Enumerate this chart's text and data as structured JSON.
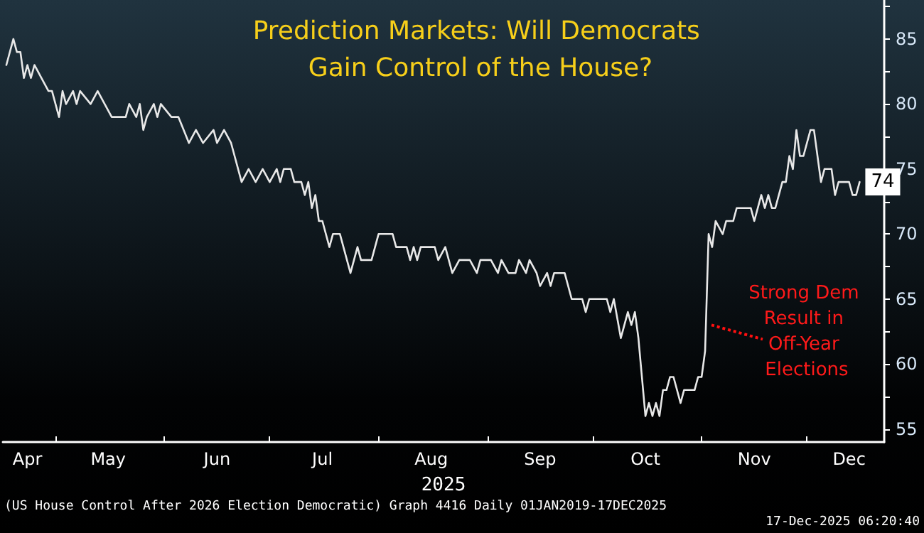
{
  "chart_data": {
    "type": "line",
    "title": "Prediction Markets: Will Democrats Gain Control of the House?",
    "xlabel": "2025",
    "x": [
      "2025-04-17",
      "2025-04-19",
      "2025-04-20",
      "2025-04-21",
      "2025-04-22",
      "2025-04-23",
      "2025-04-24",
      "2025-04-25",
      "2025-04-27",
      "2025-04-29",
      "2025-04-30",
      "2025-05-02",
      "2025-05-03",
      "2025-05-04",
      "2025-05-06",
      "2025-05-07",
      "2025-05-08",
      "2025-05-11",
      "2025-05-13",
      "2025-05-15",
      "2025-05-17",
      "2025-05-21",
      "2025-05-22",
      "2025-05-24",
      "2025-05-25",
      "2025-05-26",
      "2025-05-27",
      "2025-05-29",
      "2025-05-30",
      "2025-05-31",
      "2025-06-03",
      "2025-06-05",
      "2025-06-08",
      "2025-06-10",
      "2025-06-12",
      "2025-06-15",
      "2025-06-16",
      "2025-06-18",
      "2025-06-20",
      "2025-06-23",
      "2025-06-25",
      "2025-06-27",
      "2025-06-29",
      "2025-07-01",
      "2025-07-03",
      "2025-07-04",
      "2025-07-05",
      "2025-07-07",
      "2025-07-08",
      "2025-07-10",
      "2025-07-11",
      "2025-07-12",
      "2025-07-13",
      "2025-07-14",
      "2025-07-15",
      "2025-07-16",
      "2025-07-18",
      "2025-07-19",
      "2025-07-21",
      "2025-07-23",
      "2025-07-24",
      "2025-07-26",
      "2025-07-27",
      "2025-07-30",
      "2025-08-01",
      "2025-08-05",
      "2025-08-06",
      "2025-08-09",
      "2025-08-10",
      "2025-08-11",
      "2025-08-12",
      "2025-08-13",
      "2025-08-17",
      "2025-08-18",
      "2025-08-20",
      "2025-08-22",
      "2025-08-24",
      "2025-08-27",
      "2025-08-29",
      "2025-08-30",
      "2025-09-02",
      "2025-09-04",
      "2025-09-05",
      "2025-09-07",
      "2025-09-09",
      "2025-09-10",
      "2025-09-12",
      "2025-09-13",
      "2025-09-15",
      "2025-09-16",
      "2025-09-18",
      "2025-09-19",
      "2025-09-20",
      "2025-09-23",
      "2025-09-25",
      "2025-09-28",
      "2025-09-29",
      "2025-09-30",
      "2025-10-05",
      "2025-10-06",
      "2025-10-07",
      "2025-10-09",
      "2025-10-11",
      "2025-10-12",
      "2025-10-13",
      "2025-10-14",
      "2025-10-16",
      "2025-10-17",
      "2025-10-18",
      "2025-10-19",
      "2025-10-20",
      "2025-10-21",
      "2025-10-22",
      "2025-10-23",
      "2025-10-24",
      "2025-10-26",
      "2025-10-27",
      "2025-10-30",
      "2025-10-31",
      "2025-11-01",
      "2025-11-02",
      "2025-11-03",
      "2025-11-04",
      "2025-11-05",
      "2025-11-07",
      "2025-11-08",
      "2025-11-10",
      "2025-11-11",
      "2025-11-15",
      "2025-11-16",
      "2025-11-18",
      "2025-11-19",
      "2025-11-20",
      "2025-11-21",
      "2025-11-22",
      "2025-11-24",
      "2025-11-25",
      "2025-11-26",
      "2025-11-27",
      "2025-11-28",
      "2025-11-29",
      "2025-11-30",
      "2025-12-02",
      "2025-12-03",
      "2025-12-05",
      "2025-12-06",
      "2025-12-08",
      "2025-12-09",
      "2025-12-10",
      "2025-12-13",
      "2025-12-14",
      "2025-12-15",
      "2025-12-16"
    ],
    "series": [
      {
        "color": "#e8e8e8",
        "values": [
          83,
          85,
          84,
          84,
          82,
          83,
          82,
          83,
          82,
          81,
          81,
          79,
          81,
          80,
          81,
          80,
          81,
          80,
          81,
          80,
          79,
          79,
          80,
          79,
          80,
          78,
          79,
          80,
          79,
          80,
          79,
          79,
          77,
          78,
          77,
          78,
          77,
          78,
          77,
          74,
          75,
          74,
          75,
          74,
          75,
          74,
          75,
          75,
          74,
          74,
          73,
          74,
          72,
          73,
          71,
          71,
          69,
          70,
          70,
          68,
          67,
          69,
          68,
          68,
          70,
          70,
          69,
          69,
          68,
          69,
          68,
          69,
          69,
          68,
          69,
          67,
          68,
          68,
          67,
          68,
          68,
          67,
          68,
          67,
          67,
          68,
          67,
          68,
          67,
          66,
          67,
          66,
          67,
          67,
          65,
          65,
          64,
          65,
          65,
          64,
          65,
          62,
          64,
          63,
          64,
          62,
          56,
          57,
          56,
          57,
          56,
          58,
          58,
          59,
          59,
          57,
          58,
          58,
          59,
          59,
          61,
          70,
          69,
          71,
          70,
          71,
          71,
          72,
          72,
          71,
          73,
          72,
          73,
          72,
          72,
          74,
          74,
          76,
          75,
          78,
          76,
          76,
          78,
          78,
          74,
          75,
          75,
          73,
          74,
          74,
          73,
          73,
          74
        ],
        "value_labels": [
          null,
          null,
          null,
          null,
          null,
          null,
          null,
          null,
          null,
          null,
          null,
          null,
          null,
          null,
          null,
          null,
          null,
          null,
          null,
          null,
          null,
          null,
          null,
          null,
          null,
          null,
          null,
          null,
          null,
          null,
          null,
          null,
          null,
          null,
          null,
          null,
          null,
          null,
          null,
          null,
          null,
          null,
          null,
          null,
          null,
          null,
          null,
          null,
          null,
          null,
          null,
          null,
          null,
          null,
          null,
          null,
          null,
          null,
          null,
          null,
          null,
          null,
          null,
          null,
          null,
          null,
          null,
          null,
          null,
          null,
          null,
          null,
          null,
          null,
          null,
          null,
          null,
          null,
          null,
          null,
          null,
          null,
          null,
          null,
          null,
          null,
          null,
          null,
          null,
          null,
          null,
          null,
          null,
          null,
          null,
          null,
          null,
          null,
          null,
          null,
          null,
          null,
          null,
          null,
          null,
          null,
          null,
          null,
          null,
          null,
          null,
          null,
          null,
          null,
          null,
          null,
          null,
          null,
          null,
          null,
          null,
          null,
          null,
          null,
          null,
          null,
          null,
          null,
          null,
          null,
          null,
          null,
          null,
          null,
          null,
          null,
          null,
          null,
          null,
          null,
          null,
          null,
          null,
          null,
          null,
          null,
          null,
          null,
          null,
          null,
          null,
          null,
          "74"
        ]
      }
    ],
    "xlim": [
      "2025-04-16",
      "2025-12-23"
    ],
    "xticks": [
      {
        "value": "2025-04-23",
        "label": "Apr"
      },
      {
        "value": "2025-05-01",
        "label": null
      },
      {
        "value": "2025-05-16",
        "label": "May"
      },
      {
        "value": "2025-06-01",
        "label": null
      },
      {
        "value": "2025-06-16",
        "label": "Jun"
      },
      {
        "value": "2025-07-01",
        "label": null
      },
      {
        "value": "2025-07-16",
        "label": "Jul"
      },
      {
        "value": "2025-08-01",
        "label": null
      },
      {
        "value": "2025-08-16",
        "label": "Aug"
      },
      {
        "value": "2025-09-01",
        "label": null
      },
      {
        "value": "2025-09-16",
        "label": "Sep"
      },
      {
        "value": "2025-10-01",
        "label": null
      },
      {
        "value": "2025-10-16",
        "label": "Oct"
      },
      {
        "value": "2025-11-01",
        "label": null
      },
      {
        "value": "2025-11-16",
        "label": "Nov"
      },
      {
        "value": "2025-12-01",
        "label": null
      },
      {
        "value": "2025-12-13",
        "label": "Dec"
      }
    ],
    "ylim": [
      54,
      88
    ],
    "yticks": [
      55,
      {
        "value": 57.5,
        "label": null
      },
      60,
      {
        "value": 62.5,
        "label": null
      },
      65,
      {
        "value": 67.5,
        "label": null
      },
      70,
      {
        "value": 72.5,
        "label": null
      },
      75,
      {
        "value": 77.5,
        "label": null
      },
      80,
      {
        "value": 82.5,
        "label": null
      },
      85,
      {
        "value": 87.5,
        "label": null
      }
    ],
    "grid": false,
    "marker": "none",
    "line_style": "solid",
    "annotations": [
      {
        "text": "Strong Dem Result in Off-Year Elections",
        "x": "2025-11-03",
        "y": 63
      },
      "(US House Control After 2026 Election Democratic) Graph 4416 Daily 01JAN2019-17DEC2025",
      "17-Dec-2025 06:20:40"
    ]
  }
}
